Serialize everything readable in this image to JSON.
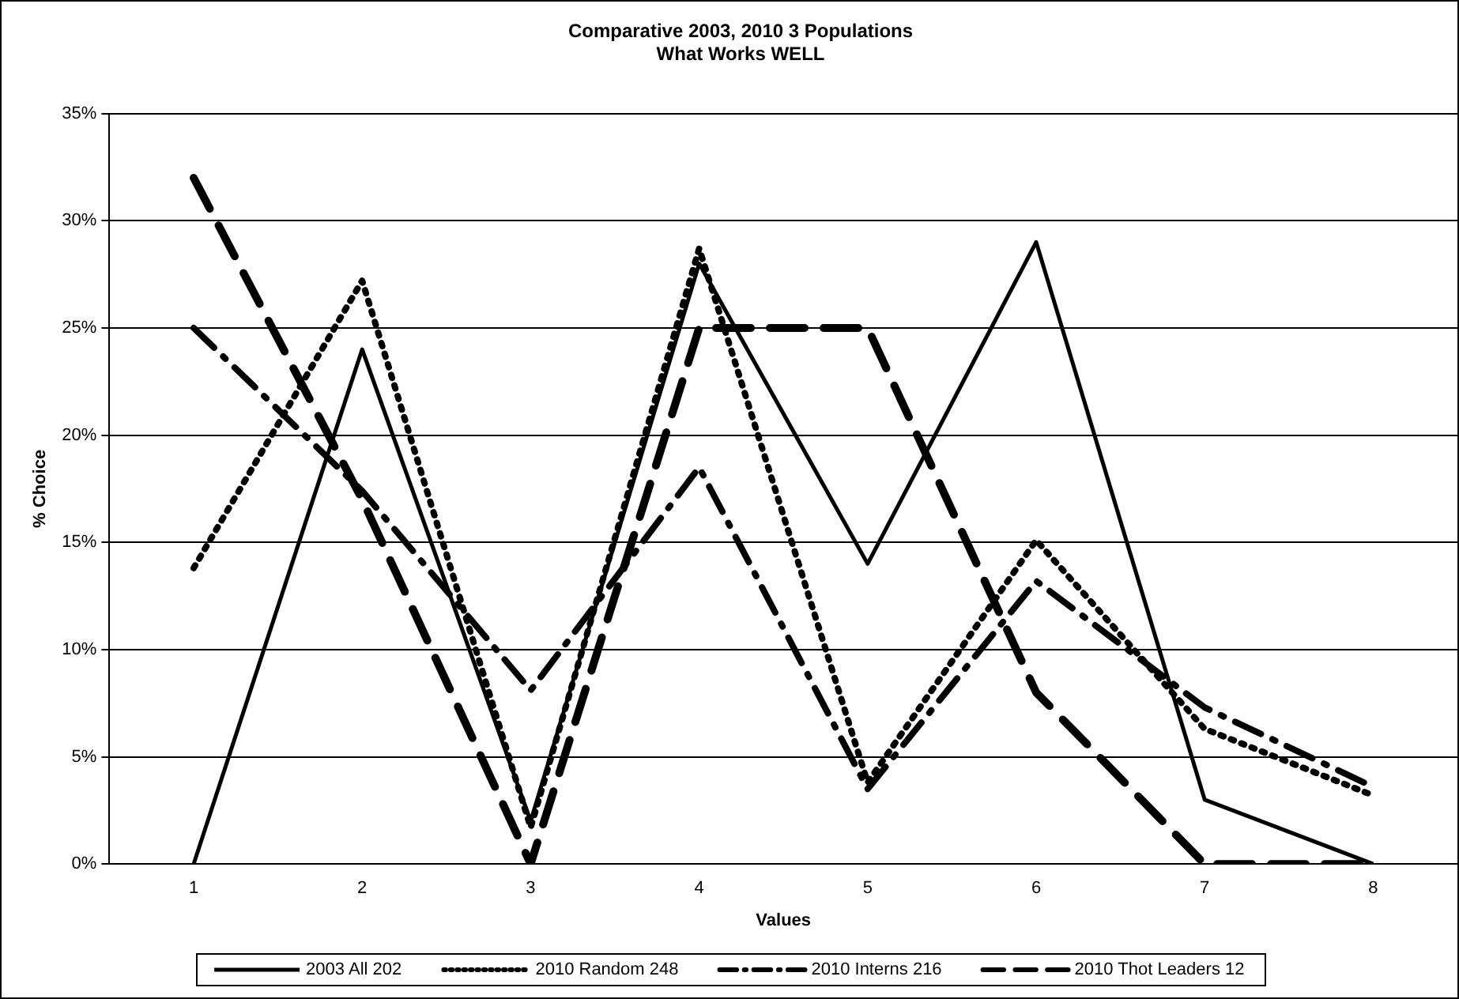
{
  "chart_data": {
    "type": "line",
    "title": "Comparative 2003, 2010 3 Populations\nWhat Works WELL",
    "xlabel": "Values",
    "ylabel": "% Choice",
    "categories": [
      "1",
      "2",
      "3",
      "4",
      "5",
      "6",
      "7",
      "8"
    ],
    "series": [
      {
        "name": "2003 All 202",
        "color": "#000000",
        "line_style": "solid",
        "values": [
          0,
          24,
          2,
          28,
          14,
          29,
          3,
          0
        ]
      },
      {
        "name": "2010 Random 248",
        "color": "#000000",
        "line_style": "dotted",
        "values": [
          13.8,
          27.2,
          1.7,
          28.7,
          3.8,
          15.1,
          6.3,
          3.2
        ]
      },
      {
        "name": "2010 Interns 216",
        "color": "#000000",
        "line_style": "dashdot",
        "values": [
          25,
          17.4,
          8.1,
          18.5,
          3.5,
          13.2,
          7.3,
          3.6
        ]
      },
      {
        "name": "2010 Thot Leaders 12",
        "color": "#000000",
        "line_style": "dashed",
        "values": [
          32,
          17,
          0,
          25,
          25,
          8,
          0,
          0
        ]
      }
    ],
    "ylim": [
      0,
      35
    ],
    "yticks": [
      {
        "value": 0,
        "label": "0%"
      },
      {
        "value": 5,
        "label": "5%"
      },
      {
        "value": 10,
        "label": "10%"
      },
      {
        "value": 15,
        "label": "15%"
      },
      {
        "value": 20,
        "label": "20%"
      },
      {
        "value": 25,
        "label": "25%"
      },
      {
        "value": 30,
        "label": "30%"
      },
      {
        "value": 35,
        "label": "35%"
      }
    ],
    "grid": "y",
    "legend": "bottom",
    "marker": "none"
  }
}
